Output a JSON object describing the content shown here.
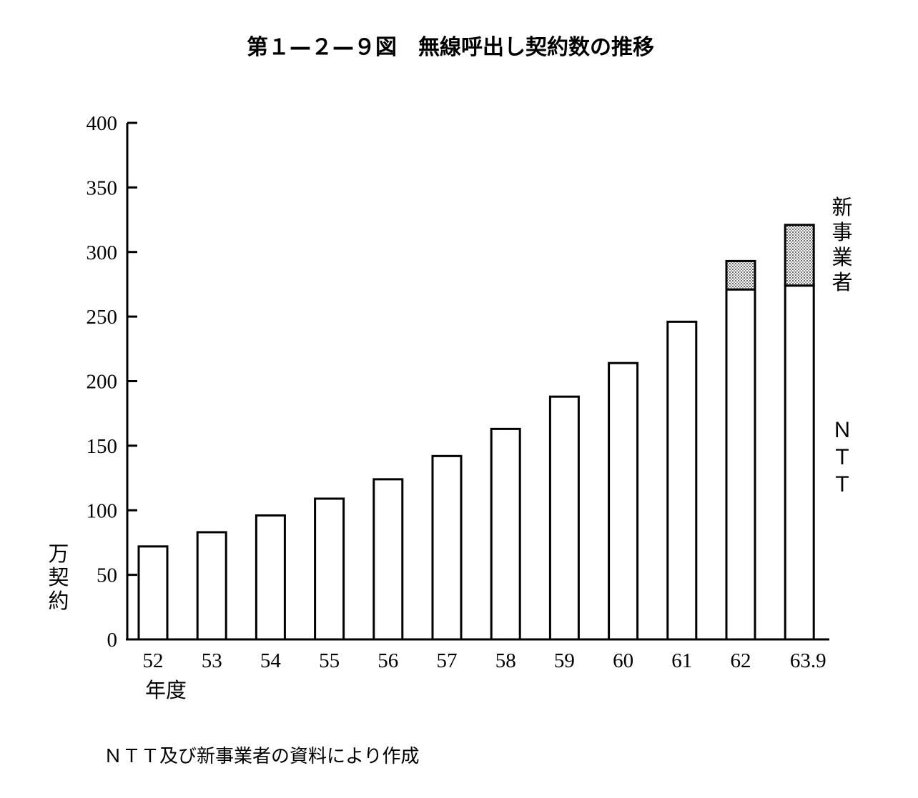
{
  "chart_data": {
    "type": "bar",
    "stacked": true,
    "title": "第１—２—９図　無線呼出し契約数の推移",
    "ylabel": "万契約",
    "xlabel": "年度",
    "ylim": [
      0,
      400
    ],
    "yticks": [
      "0",
      "50",
      "100",
      "150",
      "200",
      "250",
      "300",
      "350",
      "400"
    ],
    "categories": [
      "52",
      "53",
      "54",
      "55",
      "56",
      "57",
      "58",
      "59",
      "60",
      "61",
      "62",
      "63.9"
    ],
    "series": [
      {
        "name": "ＮＴＴ",
        "fill": "#ffffff",
        "values": [
          72,
          83,
          96,
          109,
          124,
          142,
          163,
          188,
          214,
          246,
          271,
          274
        ]
      },
      {
        "name": "新事業者",
        "fill": "dotted-gray",
        "values": [
          0,
          0,
          0,
          0,
          0,
          0,
          0,
          0,
          0,
          0,
          22,
          47
        ]
      }
    ],
    "legend_position": "right, vertical labels",
    "source_note": "ＮＴＴ及び新事業者の資料により作成"
  },
  "colors": {
    "ink": "#000000",
    "background": "#ffffff",
    "pattern": "#888888"
  }
}
